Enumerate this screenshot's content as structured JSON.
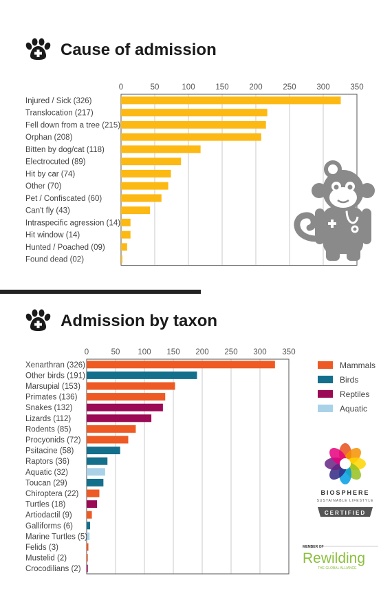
{
  "colors": {
    "orange_bar": "#FDB913",
    "mammals": "#EE5A24",
    "birds": "#136F8C",
    "reptiles": "#9B0A55",
    "aquatic": "#A9D2E8",
    "axis_line": "#555555",
    "grid": "#BBBBBB",
    "divider": "#222222",
    "icon": "#1A1A1A",
    "monkey": "#8A8A8A"
  },
  "icons": [
    "paw-icon",
    "monkey-doctor-icon",
    "biosphere-flower-logo",
    "rewilding-logo"
  ],
  "logos": {
    "biosphere_name": "BIOSPHERE",
    "biosphere_sub": "SUSTAINABLE LIFESTYLE",
    "biosphere_badge": "CERTIFIED",
    "rewilding_member": "MEMBER OF",
    "rewilding_name": "Rewilding",
    "rewilding_sub": "THE GLOBAL ALLIANCE"
  },
  "chart_data": [
    {
      "type": "bar",
      "orientation": "horizontal",
      "title": "Cause of admission",
      "categories": [
        "Injured / Sick (326)",
        "Translocation (217)",
        "Fell down from a tree (215)",
        "Orphan (208)",
        "Bitten by dog/cat (118)",
        "Electrocuted (89)",
        "Hit by car (74)",
        "Other (70)",
        "Pet / Confiscated (60)",
        "Can't fly (43)",
        "Intraspecific agression (14)",
        "Hit window (14)",
        "Hunted / Poached (09)",
        "Found dead (02)"
      ],
      "values": [
        326,
        217,
        215,
        208,
        118,
        89,
        74,
        70,
        60,
        43,
        14,
        14,
        9,
        2
      ],
      "xlim": [
        0,
        350
      ],
      "xticks": [
        "0",
        "50",
        "100",
        "150",
        "200",
        "250",
        "300",
        "350"
      ],
      "grid": true
    },
    {
      "type": "bar",
      "orientation": "horizontal",
      "title": "Admission by taxon",
      "categories": [
        "Xenarthran (326)",
        "Other birds (191)",
        "Marsupial (153)",
        "Primates (136)",
        "Snakes (132)",
        "Lizards (112)",
        "Rodents (85)",
        "Procyonids (72)",
        "Psitacine (58)",
        "Raptors (36)",
        "Aquatic (32)",
        "Toucan (29)",
        "Chiroptera (22)",
        "Turtles (18)",
        "Artiodactil (9)",
        "Galliforms (6)",
        "Marine Turtles (5)",
        "Felids (3)",
        "Mustelid (2)",
        "Crocodilians (2)"
      ],
      "values": [
        326,
        191,
        153,
        136,
        132,
        112,
        85,
        72,
        58,
        36,
        32,
        29,
        22,
        18,
        9,
        6,
        5,
        3,
        2,
        2
      ],
      "groups": [
        "Mammals",
        "Birds",
        "Mammals",
        "Mammals",
        "Reptiles",
        "Reptiles",
        "Mammals",
        "Mammals",
        "Birds",
        "Birds",
        "Aquatic",
        "Birds",
        "Mammals",
        "Reptiles",
        "Mammals",
        "Birds",
        "Aquatic",
        "Mammals",
        "Mammals",
        "Reptiles"
      ],
      "legend": [
        "Mammals",
        "Birds",
        "Reptiles",
        "Aquatic"
      ],
      "legend_position": "right",
      "xlim": [
        0,
        350
      ],
      "xticks": [
        "0",
        "50",
        "100",
        "150",
        "200",
        "250",
        "300",
        "350"
      ],
      "grid": true
    }
  ]
}
